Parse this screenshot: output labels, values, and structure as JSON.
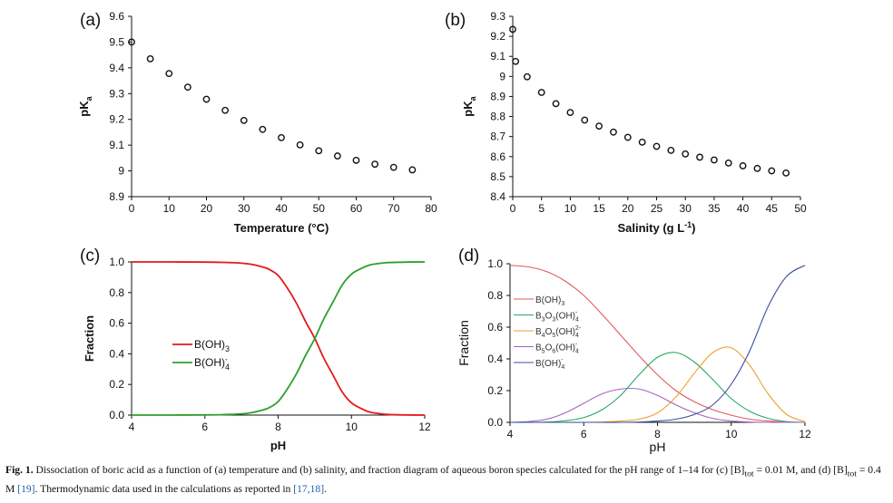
{
  "panels": {
    "a": {
      "label": "(a)",
      "chart_data": {
        "type": "scatter",
        "title": "",
        "xlabel": "Temperature (°C)",
        "ylabel": "pK",
        "ylabel_sub": "a",
        "xlim": [
          0,
          80
        ],
        "ylim": [
          8.9,
          9.6
        ],
        "xticks": [
          0,
          10,
          20,
          30,
          40,
          50,
          60,
          70,
          80
        ],
        "xtick_labels": [
          "0",
          "10",
          "20",
          "30",
          "40",
          "50",
          "60",
          "70",
          "80"
        ],
        "yticks": [
          8.9,
          9.0,
          9.1,
          9.2,
          9.3,
          9.4,
          9.5,
          9.6
        ],
        "ytick_labels": [
          "8.9",
          "9",
          "9.1",
          "9.2",
          "9.3",
          "9.4",
          "9.5",
          "9.6"
        ],
        "marker": "open-circle",
        "x": [
          0,
          5,
          10,
          15,
          20,
          25,
          30,
          35,
          40,
          45,
          50,
          55,
          60,
          65,
          70,
          75
        ],
        "y": [
          9.5,
          9.435,
          9.378,
          9.325,
          9.278,
          9.235,
          9.196,
          9.161,
          9.129,
          9.101,
          9.078,
          9.058,
          9.041,
          9.026,
          9.014,
          9.004
        ]
      }
    },
    "b": {
      "label": "(b)",
      "chart_data": {
        "type": "scatter",
        "title": "",
        "xlabel": "Salinity (g L",
        "xlabel_sup": "-1",
        "xlabel_end": ")",
        "ylabel": "pK",
        "ylabel_sub": "a",
        "xlim": [
          0,
          50
        ],
        "ylim": [
          8.4,
          9.3
        ],
        "xticks": [
          0,
          5,
          10,
          15,
          20,
          25,
          30,
          35,
          40,
          45,
          50
        ],
        "xtick_labels": [
          "0",
          "5",
          "10",
          "15",
          "20",
          "25",
          "30",
          "35",
          "40",
          "45",
          "50"
        ],
        "yticks": [
          8.4,
          8.5,
          8.6,
          8.7,
          8.8,
          8.9,
          9.0,
          9.1,
          9.2,
          9.3
        ],
        "ytick_labels": [
          "8.4",
          "8.5",
          "8.6",
          "8.7",
          "8.8",
          "8.9",
          "9",
          "9.1",
          "9.2",
          "9.3"
        ],
        "marker": "open-circle",
        "x": [
          0,
          0.5,
          2.5,
          5,
          7.5,
          10,
          12.5,
          15,
          17.5,
          20,
          22.5,
          25,
          27.5,
          30,
          32.5,
          35,
          37.5,
          40,
          42.5,
          45,
          47.5
        ],
        "y": [
          9.235,
          9.075,
          8.998,
          8.92,
          8.864,
          8.82,
          8.782,
          8.752,
          8.722,
          8.696,
          8.672,
          8.651,
          8.631,
          8.613,
          8.597,
          8.583,
          8.568,
          8.554,
          8.541,
          8.529,
          8.518
        ]
      }
    },
    "c": {
      "label": "(c)",
      "chart_data": {
        "type": "line",
        "title": "",
        "xlabel": "pH",
        "ylabel": "Fraction",
        "xlim": [
          4,
          12
        ],
        "ylim": [
          0,
          1.0
        ],
        "xticks": [
          4,
          6,
          8,
          10,
          12
        ],
        "xtick_labels": [
          "4",
          "6",
          "8",
          "10",
          "12"
        ],
        "yticks": [
          0,
          0.2,
          0.4,
          0.6,
          0.8,
          1.0
        ],
        "ytick_labels": [
          "0.0",
          "0.2",
          "0.4",
          "0.6",
          "0.8",
          "1.0"
        ],
        "x": [
          4,
          5,
          6,
          6.5,
          7,
          7.25,
          7.5,
          7.75,
          8,
          8.25,
          8.5,
          8.75,
          9,
          9.25,
          9.5,
          9.75,
          10,
          10.25,
          10.5,
          10.75,
          11,
          11.5,
          12
        ],
        "series": [
          {
            "name": "B(OH)",
            "sub": "3",
            "sup": "",
            "color": "#e31a1c",
            "values": [
              1.0,
              1.0,
              0.999,
              0.997,
              0.992,
              0.985,
              0.972,
              0.952,
              0.912,
              0.83,
              0.73,
              0.61,
              0.5,
              0.37,
              0.26,
              0.15,
              0.08,
              0.045,
              0.02,
              0.01,
              0.004,
              0.001,
              0.0
            ]
          },
          {
            "name": "B(OH)",
            "sub": "4",
            "sup": "-",
            "color": "#2ca02c",
            "values": [
              0.0,
              0.0,
              0.001,
              0.003,
              0.008,
              0.015,
              0.028,
              0.048,
              0.088,
              0.17,
              0.27,
              0.39,
              0.5,
              0.63,
              0.74,
              0.85,
              0.92,
              0.955,
              0.98,
              0.99,
              0.996,
              0.999,
              1.0
            ]
          }
        ],
        "legend_position": "center-left"
      }
    },
    "d": {
      "label": "(d)",
      "chart_data": {
        "type": "line",
        "title": "",
        "xlabel": "pH",
        "ylabel": "Fraction",
        "xlim": [
          4,
          12
        ],
        "ylim": [
          0,
          1.0
        ],
        "xticks": [
          4,
          6,
          8,
          10,
          12
        ],
        "xtick_labels": [
          "4",
          "6",
          "8",
          "10",
          "12"
        ],
        "yticks": [
          0,
          0.2,
          0.4,
          0.6,
          0.8,
          1.0
        ],
        "ytick_labels": [
          "0.0",
          "0.2",
          "0.4",
          "0.6",
          "0.8",
          "1.0"
        ],
        "x": [
          4,
          4.5,
          5,
          5.5,
          6,
          6.5,
          7,
          7.5,
          8,
          8.5,
          9,
          9.5,
          10,
          10.5,
          11,
          11.5,
          12
        ],
        "series": [
          {
            "name": "B(OH)",
            "label_parts": [
              [
                "B(OH)",
                ""
              ],
              [
                "3",
                "sub"
              ]
            ],
            "color": "#e05a5a",
            "values": [
              0.99,
              0.98,
              0.95,
              0.89,
              0.8,
              0.68,
              0.55,
              0.42,
              0.3,
              0.2,
              0.13,
              0.08,
              0.045,
              0.02,
              0.008,
              0.002,
              0.0
            ]
          },
          {
            "name": "B3O3(OH)4-",
            "label_parts": [
              [
                "B",
                ""
              ],
              [
                "3",
                "sub"
              ],
              [
                "O",
                ""
              ],
              [
                "3",
                "sub"
              ],
              [
                "(OH)",
                ""
              ],
              [
                "4",
                "sub"
              ],
              [
                "-",
                "sup"
              ]
            ],
            "color": "#2aa866",
            "values": [
              0.0,
              0.0,
              0.002,
              0.01,
              0.03,
              0.08,
              0.17,
              0.3,
              0.41,
              0.44,
              0.38,
              0.27,
              0.15,
              0.07,
              0.025,
              0.005,
              0.0
            ]
          },
          {
            "name": "B4O5(OH)4 2-",
            "label_parts": [
              [
                "B",
                ""
              ],
              [
                "4",
                "sub"
              ],
              [
                "O",
                ""
              ],
              [
                "5",
                "sub"
              ],
              [
                "(OH)",
                ""
              ],
              [
                "4",
                "sub"
              ],
              [
                "2-",
                "sup"
              ]
            ],
            "color": "#f0a030",
            "values": [
              0.0,
              0.0,
              0.0,
              0.0,
              0.0,
              0.002,
              0.008,
              0.02,
              0.06,
              0.16,
              0.31,
              0.44,
              0.47,
              0.36,
              0.18,
              0.05,
              0.005
            ]
          },
          {
            "name": "B5O6(OH)4-",
            "label_parts": [
              [
                "B",
                ""
              ],
              [
                "5",
                "sub"
              ],
              [
                "O",
                ""
              ],
              [
                "6",
                "sub"
              ],
              [
                "(OH)",
                ""
              ],
              [
                "4",
                "sub"
              ],
              [
                "-",
                "sup"
              ]
            ],
            "color": "#a064c0",
            "values": [
              0.0,
              0.005,
              0.02,
              0.06,
              0.12,
              0.18,
              0.21,
              0.21,
              0.17,
              0.11,
              0.06,
              0.025,
              0.008,
              0.002,
              0.0,
              0.0,
              0.0
            ]
          },
          {
            "name": "B(OH)4-",
            "label_parts": [
              [
                "B(OH)",
                ""
              ],
              [
                "4",
                "sub"
              ],
              [
                "-",
                "sup"
              ]
            ],
            "color": "#3a4ea8",
            "values": [
              0.0,
              0.0,
              0.0,
              0.0,
              0.0,
              0.0,
              0.0,
              0.002,
              0.008,
              0.02,
              0.05,
              0.11,
              0.24,
              0.45,
              0.73,
              0.92,
              0.99
            ]
          }
        ],
        "legend_position": "center-left"
      }
    }
  },
  "caption": {
    "fig_label": "Fig. 1.",
    "text_1": " Dissociation of boric acid as a function of (a) temperature and (b) salinity, and fraction diagram of aqueous boron species calculated for the pH range of 1–14 for (c) [B]",
    "sub_1": "tot",
    "text_2": " = 0.01 M, and (d) [B]",
    "sub_2": "tot",
    "text_3": " = 0.4 M ",
    "ref_1": "[19]",
    "text_4": ". Thermodynamic data used in the calculations as reported in ",
    "ref_2": "[17,18]",
    "text_5": "."
  }
}
